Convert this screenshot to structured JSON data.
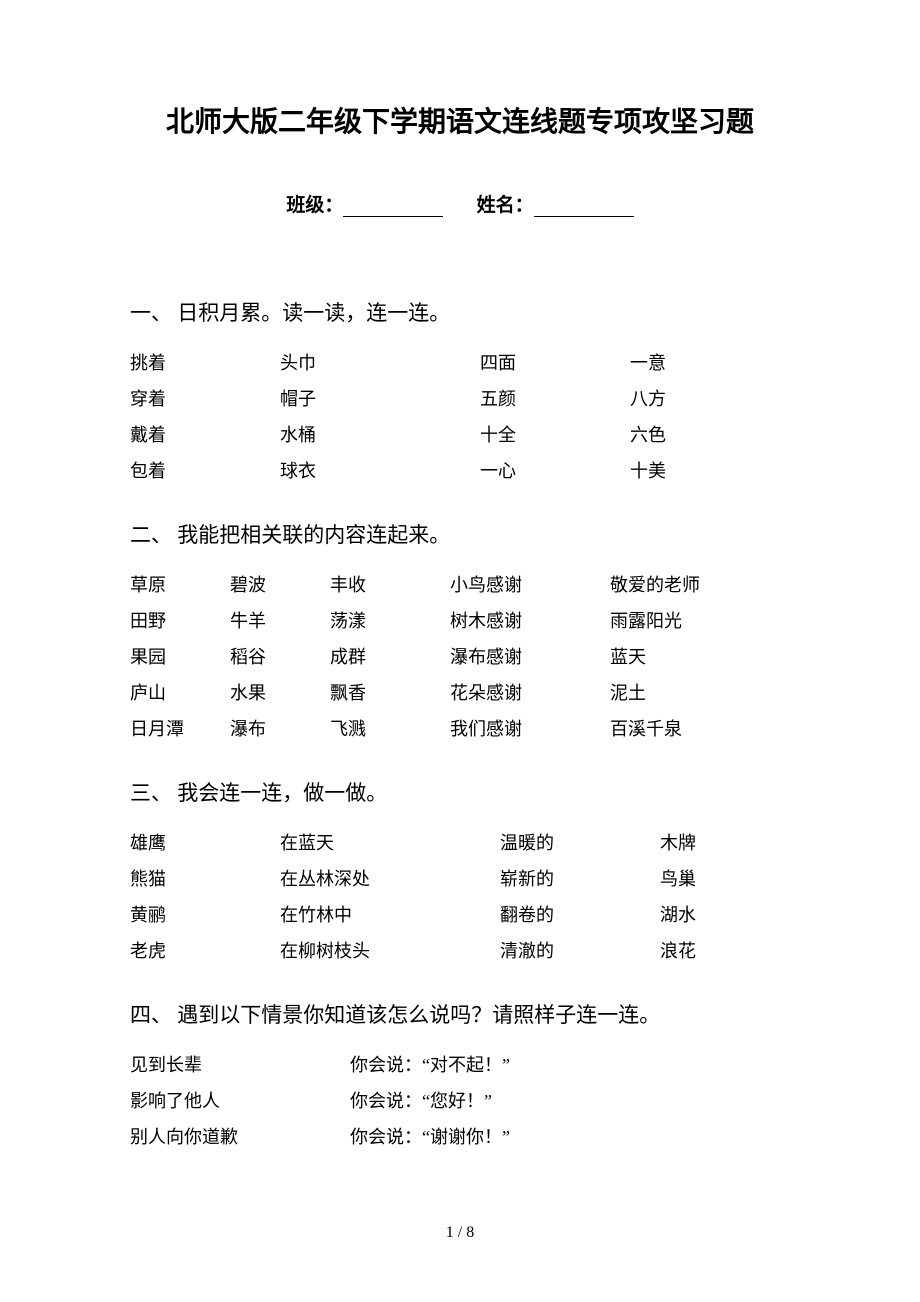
{
  "title": "北师大版二年级下学期语文连线题专项攻坚习题",
  "info": {
    "class_label": "班级：",
    "name_label": "姓名："
  },
  "sections": [
    {
      "heading": "一、 日积月累。读一读，连一连。",
      "table_class": "s1",
      "columns": [
        [
          "挑着",
          "穿着",
          "戴着",
          "包着"
        ],
        [
          "头巾",
          "帽子",
          "水桶",
          "球衣"
        ],
        [
          "四面",
          "五颜",
          "十全",
          "一心"
        ],
        [
          "一意",
          "八方",
          "六色",
          "十美"
        ]
      ]
    },
    {
      "heading": "二、 我能把相关联的内容连起来。",
      "table_class": "s2",
      "columns": [
        [
          "草原",
          "田野",
          "果园",
          "庐山",
          "日月潭"
        ],
        [
          "碧波",
          "牛羊",
          "稻谷",
          "水果",
          "瀑布"
        ],
        [
          "丰收",
          "荡漾",
          "成群",
          "飘香",
          "飞溅"
        ],
        [
          "小鸟感谢",
          "树木感谢",
          "瀑布感谢",
          "花朵感谢",
          "我们感谢"
        ],
        [
          "敬爱的老师",
          "雨露阳光",
          "蓝天",
          "泥土",
          "百溪千泉"
        ]
      ]
    },
    {
      "heading": "三、 我会连一连，做一做。",
      "table_class": "s3",
      "columns": [
        [
          "雄鹰",
          "熊猫",
          "黄鹂",
          "老虎"
        ],
        [
          "在蓝天",
          "在丛林深处",
          "在竹林中",
          "在柳树枝头"
        ],
        [
          "温暖的",
          "崭新的",
          "翻卷的",
          "清澈的"
        ],
        [
          "木牌",
          "鸟巢",
          "湖水",
          "浪花"
        ]
      ]
    },
    {
      "heading": "四、 遇到以下情景你知道该怎么说吗？请照样子连一连。",
      "table_class": "s4",
      "columns": [
        [
          "见到长辈",
          "影响了他人",
          "别人向你道歉"
        ],
        [
          "你会说：“对不起！”",
          "你会说：“您好！”",
          "你会说：“谢谢你！”"
        ]
      ]
    }
  ],
  "page_number": "1 / 8",
  "colors": {
    "background": "#ffffff",
    "text": "#000000"
  },
  "typography": {
    "title_fontsize": 28,
    "heading_fontsize": 21,
    "body_fontsize": 18,
    "font_family": "SimSun"
  }
}
